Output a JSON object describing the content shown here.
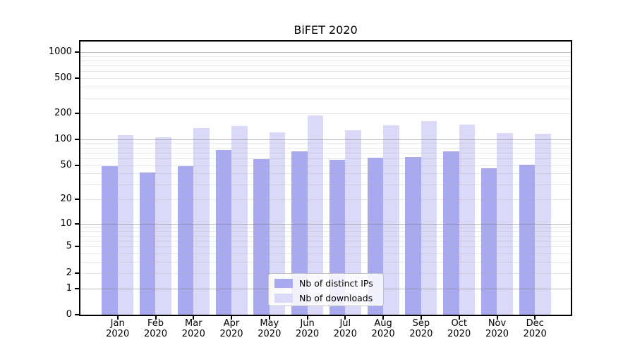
{
  "title": "BiFET 2020",
  "chart_data": {
    "type": "bar",
    "title": "BiFET 2020",
    "categories": [
      "Jan 2020",
      "Feb 2020",
      "Mar 2020",
      "Apr 2020",
      "May 2020",
      "Jun 2020",
      "Jul 2020",
      "Aug 2020",
      "Sep 2020",
      "Oct 2020",
      "Nov 2020",
      "Dec 2020"
    ],
    "month_labels": [
      "Jan",
      "Feb",
      "Mar",
      "Apr",
      "May",
      "Jun",
      "Jul",
      "Aug",
      "Sep",
      "Oct",
      "Nov",
      "Dec"
    ],
    "year_label": "2020",
    "series": [
      {
        "name": "Nb of distinct IPs",
        "color": "#a9a9ef",
        "values": [
          49,
          41,
          49,
          75,
          59,
          72,
          58,
          61,
          62,
          72,
          46,
          51
        ]
      },
      {
        "name": "Nb of downloads",
        "color": "#dadaf8",
        "values": [
          111,
          106,
          133,
          141,
          120,
          186,
          127,
          144,
          163,
          147,
          117,
          115
        ]
      }
    ],
    "y_axis": {
      "scale": "log1p",
      "tick_labels": [
        1000,
        500,
        200,
        100,
        50,
        20,
        10,
        5,
        2,
        1,
        0
      ],
      "min": 0,
      "top_tick": 1000
    },
    "grid": {
      "horizontal": true,
      "major_lines_at": [
        1,
        10,
        100,
        1000
      ],
      "minor_lines": "2-9 multiples of each decade"
    },
    "legend": {
      "position": "inside bottom-center",
      "entries": [
        "Nb of distinct IPs",
        "Nb of downloads"
      ]
    }
  },
  "colors": {
    "bar_distinct_ips": "#a9a9ef",
    "bar_downloads": "#dadaf8",
    "frame": "#000000",
    "grid_major": "#bcbcbc",
    "grid_minor": "#e6e6e6",
    "legend_border": "#c3c3c3",
    "text": "#000000"
  }
}
